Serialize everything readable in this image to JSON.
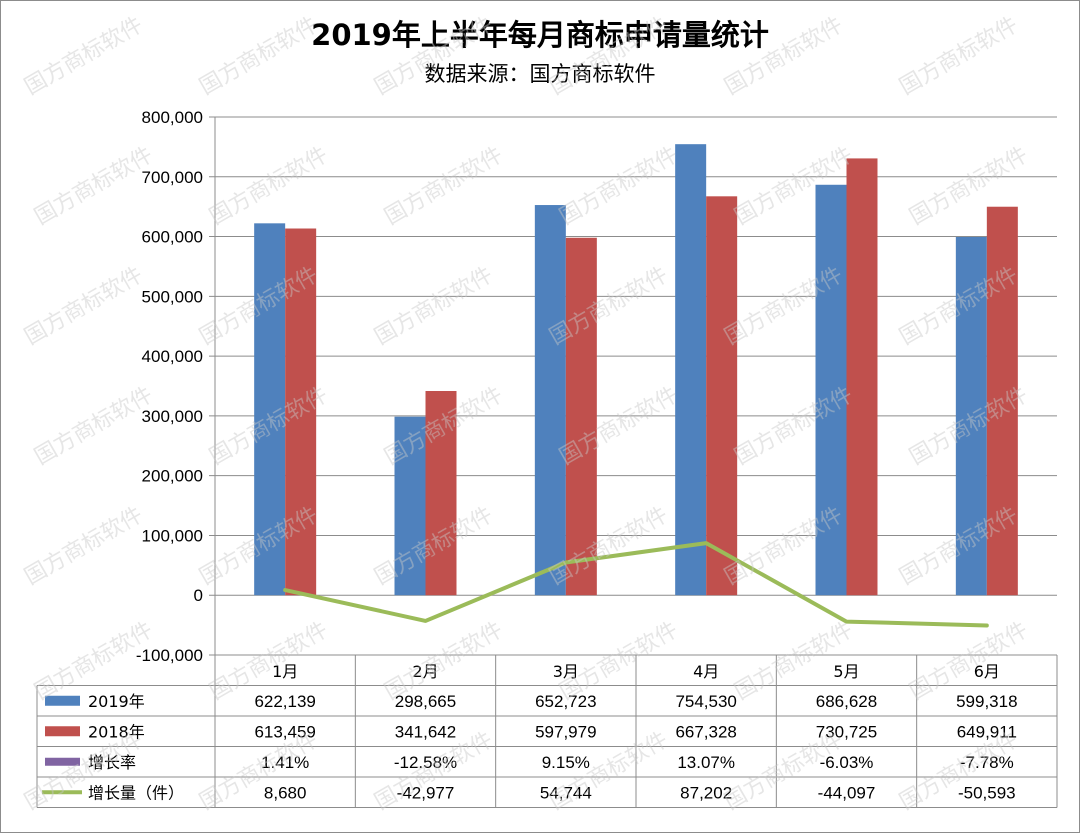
{
  "title": "2019年上半年每月商标申请量统计",
  "subtitle": "数据来源：国方商标软件",
  "watermark": "国方商标软件",
  "chart_data": {
    "type": "bar",
    "categories": [
      "1月",
      "2月",
      "3月",
      "4月",
      "5月",
      "6月"
    ],
    "ylim": [
      -100000,
      800000
    ],
    "yticks": [
      800000,
      700000,
      600000,
      500000,
      400000,
      300000,
      200000,
      100000,
      0,
      -100000
    ],
    "ytick_labels": [
      "800,000",
      "700,000",
      "600,000",
      "500,000",
      "400,000",
      "300,000",
      "200,000",
      "100,000",
      "0",
      "-100,000"
    ],
    "grid": true,
    "series": [
      {
        "name": "2019年",
        "type": "bar",
        "color": "#4f81bd",
        "values": [
          622139,
          298665,
          652723,
          754530,
          686628,
          599318
        ],
        "labels": [
          "622,139",
          "298,665",
          "652,723",
          "754,530",
          "686,628",
          "599,318"
        ]
      },
      {
        "name": "2018年",
        "type": "bar",
        "color": "#c0504d",
        "values": [
          613459,
          341642,
          597979,
          667328,
          730725,
          649911
        ],
        "labels": [
          "613,459",
          "341,642",
          "597,979",
          "667,328",
          "730,725",
          "649,911"
        ]
      },
      {
        "name": "增长率",
        "type": "line",
        "color": "#8064a2",
        "hidden": true,
        "values": [
          1.41,
          -12.58,
          9.15,
          13.07,
          -6.03,
          -7.78
        ],
        "labels": [
          "1.41%",
          "-12.58%",
          "9.15%",
          "13.07%",
          "-6.03%",
          "-7.78%"
        ]
      },
      {
        "name": "增长量（件）",
        "type": "line",
        "color": "#9bbb59",
        "values": [
          8680,
          -42977,
          54744,
          87202,
          -44097,
          -50593
        ],
        "labels": [
          "8,680",
          "-42,977",
          "54,744",
          "87,202",
          "-44,097",
          "-50,593"
        ]
      }
    ]
  }
}
